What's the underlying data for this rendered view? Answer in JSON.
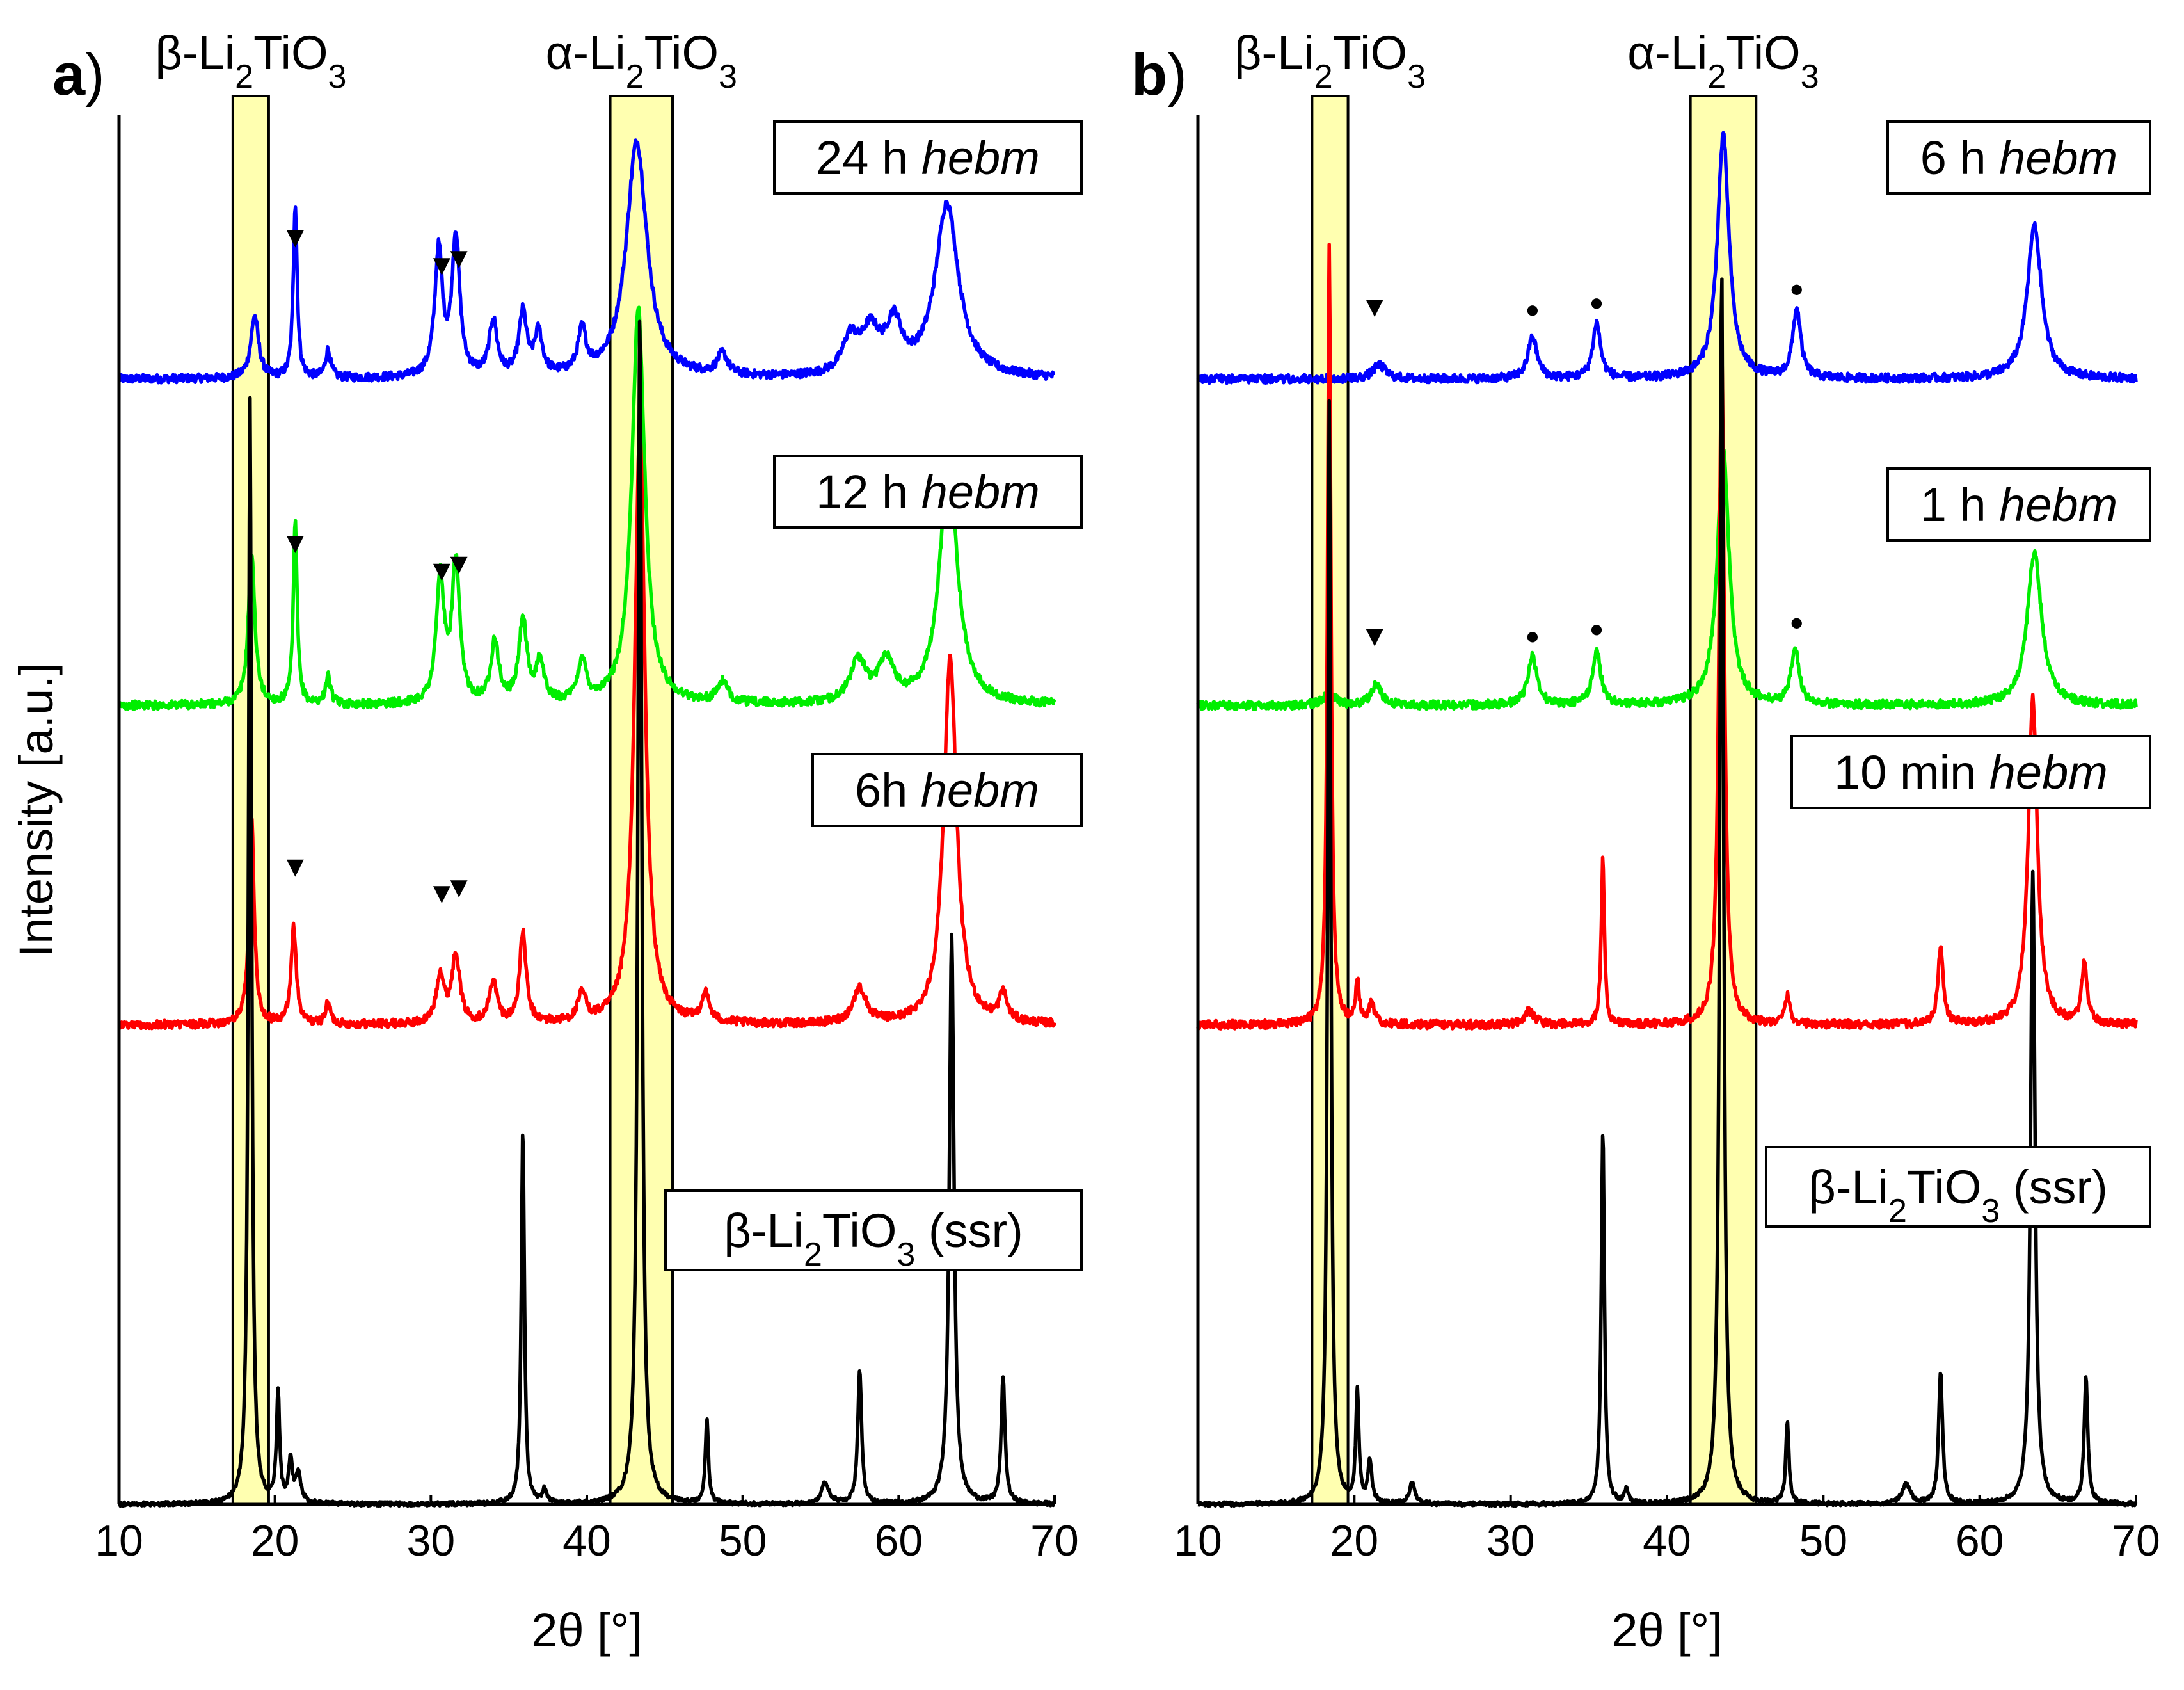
{
  "chart_data": [
    {
      "type": "line",
      "panel_letter": "a",
      "panel_paren": ")",
      "xlabel": "2θ [°]",
      "ylabel": "Intensity [a.u.]",
      "xlim": [
        10,
        70
      ],
      "xticks": [
        "10",
        "20",
        "30",
        "40",
        "50",
        "60",
        "70"
      ],
      "regions": [
        {
          "label_prefix": "β-Li",
          "sub1": "2",
          "label_mid": "TiO",
          "sub2": "3",
          "x_range": [
            17.3,
            19.6
          ]
        },
        {
          "label_prefix": "α-Li",
          "sub1": "2",
          "label_mid": "TiO",
          "sub2": "3",
          "x_range": [
            41.5,
            45.5
          ]
        }
      ],
      "series": [
        {
          "name": "24 h hebm",
          "legend_plain": "24 h ",
          "legend_italic": "hebm",
          "color": "#0000ff",
          "offset": 0.81,
          "baseline": 0.0,
          "peaks": [
            [
              18.7,
              0.045,
              0.3
            ],
            [
              21.3,
              0.125,
              0.15
            ],
            [
              23.4,
              0.02,
              0.2
            ],
            [
              30.5,
              0.09,
              0.3
            ],
            [
              31.6,
              0.1,
              0.3
            ],
            [
              34.0,
              0.04,
              0.3
            ],
            [
              35.9,
              0.045,
              0.3
            ],
            [
              36.9,
              0.03,
              0.3
            ],
            [
              39.7,
              0.03,
              0.3
            ],
            [
              43.2,
              0.17,
              0.8
            ],
            [
              48.7,
              0.015,
              0.4
            ],
            [
              56.9,
              0.025,
              0.6
            ],
            [
              58.2,
              0.03,
              0.7
            ],
            [
              59.7,
              0.035,
              0.6
            ],
            [
              63.1,
              0.125,
              0.9
            ]
          ],
          "markers": [
            {
              "symbol": "▼",
              "x": 21.3,
              "y": 0.905
            },
            {
              "symbol": "▼",
              "x": 30.7,
              "y": 0.885
            },
            {
              "symbol": "▼",
              "x": 31.8,
              "y": 0.89
            }
          ]
        },
        {
          "name": "12 h hebm",
          "legend_plain": "12 h ",
          "legend_italic": "hebm",
          "color": "#00ee00",
          "offset": 0.575,
          "baseline": 0.0,
          "peaks": [
            [
              18.5,
              0.11,
              0.25
            ],
            [
              21.3,
              0.13,
              0.15
            ],
            [
              23.4,
              0.02,
              0.2
            ],
            [
              30.6,
              0.09,
              0.3
            ],
            [
              31.6,
              0.1,
              0.3
            ],
            [
              34.1,
              0.045,
              0.3
            ],
            [
              35.9,
              0.06,
              0.3
            ],
            [
              37.0,
              0.03,
              0.3
            ],
            [
              39.7,
              0.03,
              0.3
            ],
            [
              43.3,
              0.285,
              0.5
            ],
            [
              48.7,
              0.015,
              0.4
            ],
            [
              57.4,
              0.03,
              0.6
            ],
            [
              59.2,
              0.03,
              0.6
            ],
            [
              63.2,
              0.17,
              0.7
            ]
          ],
          "markers": [
            {
              "symbol": "▼",
              "x": 21.3,
              "y": 0.685
            },
            {
              "symbol": "▼",
              "x": 30.7,
              "y": 0.665
            },
            {
              "symbol": "▼",
              "x": 31.8,
              "y": 0.67
            }
          ]
        },
        {
          "name": "6h hebm",
          "legend_plain": "6h ",
          "legend_italic": "hebm",
          "color": "#ff0000",
          "offset": 0.345,
          "baseline": 0.0,
          "peaks": [
            [
              18.5,
              0.15,
              0.2
            ],
            [
              21.2,
              0.07,
              0.2
            ],
            [
              23.4,
              0.015,
              0.2
            ],
            [
              30.6,
              0.035,
              0.3
            ],
            [
              31.6,
              0.05,
              0.3
            ],
            [
              34.0,
              0.03,
              0.3
            ],
            [
              35.9,
              0.065,
              0.25
            ],
            [
              39.7,
              0.02,
              0.3
            ],
            [
              43.4,
              0.43,
              0.4
            ],
            [
              47.6,
              0.02,
              0.3
            ],
            [
              57.5,
              0.025,
              0.5
            ],
            [
              63.3,
              0.265,
              0.5
            ],
            [
              66.7,
              0.02,
              0.3
            ]
          ],
          "markers": [
            {
              "symbol": "▼",
              "x": 21.3,
              "y": 0.452
            },
            {
              "symbol": "▼",
              "x": 30.7,
              "y": 0.433
            },
            {
              "symbol": "▼",
              "x": 31.8,
              "y": 0.437
            }
          ]
        },
        {
          "name": "β-Li2TiO3 (ssr)",
          "legend_plain": "β-Li",
          "legend_sub1": "2",
          "legend_mid": "TiO",
          "legend_sub2": "3",
          "legend_tail": " (ssr)",
          "color": "#000000",
          "offset": 0.0,
          "baseline": 0.0,
          "peaks": [
            [
              18.4,
              0.795,
              0.12
            ],
            [
              20.2,
              0.08,
              0.12
            ],
            [
              21.0,
              0.03,
              0.15
            ],
            [
              21.5,
              0.02,
              0.2
            ],
            [
              35.9,
              0.27,
              0.12
            ],
            [
              37.3,
              0.01,
              0.15
            ],
            [
              43.4,
              0.86,
              0.15
            ],
            [
              47.7,
              0.06,
              0.12
            ],
            [
              55.3,
              0.015,
              0.3
            ],
            [
              57.5,
              0.095,
              0.15
            ],
            [
              63.4,
              0.41,
              0.18
            ],
            [
              66.7,
              0.09,
              0.15
            ]
          ],
          "markers": []
        }
      ]
    },
    {
      "type": "line",
      "panel_letter": "b",
      "panel_paren": ")",
      "xlabel": "2θ [°]",
      "xlim": [
        10,
        70
      ],
      "xticks": [
        "10",
        "20",
        "30",
        "40",
        "50",
        "60",
        "70"
      ],
      "regions": [
        {
          "label_prefix": "β-Li",
          "sub1": "2",
          "label_mid": "TiO",
          "sub2": "3",
          "x_range": [
            17.3,
            19.6
          ]
        },
        {
          "label_prefix": "α-Li",
          "sub1": "2",
          "label_mid": "TiO",
          "sub2": "3",
          "x_range": [
            41.5,
            45.7
          ]
        }
      ],
      "series": [
        {
          "name": "6 h hebm",
          "legend_plain": "6 h ",
          "legend_italic": "hebm",
          "color": "#0000ff",
          "offset": 0.81,
          "baseline": 0.0,
          "peaks": [
            [
              21.6,
              0.01,
              0.5
            ],
            [
              31.4,
              0.03,
              0.35
            ],
            [
              35.5,
              0.04,
              0.3
            ],
            [
              43.6,
              0.175,
              0.45
            ],
            [
              48.3,
              0.05,
              0.3
            ],
            [
              63.5,
              0.11,
              0.55
            ]
          ],
          "markers": [
            {
              "symbol": "▼",
              "x": 21.3,
              "y": 0.855
            },
            {
              "symbol": "•",
              "x": 31.4,
              "y": 0.85
            },
            {
              "symbol": "•",
              "x": 35.5,
              "y": 0.855
            },
            {
              "symbol": "•",
              "x": 48.3,
              "y": 0.865
            }
          ]
        },
        {
          "name": "1 h hebm",
          "legend_plain": "1 h ",
          "legend_italic": "hebm",
          "color": "#00ee00",
          "offset": 0.575,
          "baseline": 0.0,
          "peaks": [
            [
              18.4,
              0.01,
              0.4
            ],
            [
              21.4,
              0.015,
              0.4
            ],
            [
              31.4,
              0.035,
              0.35
            ],
            [
              35.5,
              0.04,
              0.3
            ],
            [
              43.6,
              0.185,
              0.45
            ],
            [
              48.2,
              0.04,
              0.3
            ],
            [
              63.5,
              0.11,
              0.55
            ]
          ],
          "markers": [
            {
              "symbol": "▼",
              "x": 21.3,
              "y": 0.618
            },
            {
              "symbol": "•",
              "x": 31.4,
              "y": 0.615
            },
            {
              "symbol": "•",
              "x": 35.5,
              "y": 0.62
            },
            {
              "symbol": "•",
              "x": 48.3,
              "y": 0.625
            }
          ]
        },
        {
          "name": "10 min hebm",
          "legend_plain": "10 min ",
          "legend_italic": "hebm",
          "color": "#ff0000",
          "offset": 0.345,
          "baseline": 0.0,
          "peaks": [
            [
              18.4,
              0.56,
              0.13
            ],
            [
              20.2,
              0.03,
              0.15
            ],
            [
              21.1,
              0.015,
              0.2
            ],
            [
              31.2,
              0.01,
              0.4
            ],
            [
              35.9,
              0.12,
              0.12
            ],
            [
              43.5,
              0.49,
              0.2
            ],
            [
              47.7,
              0.02,
              0.2
            ],
            [
              57.5,
              0.055,
              0.2
            ],
            [
              63.4,
              0.235,
              0.35
            ],
            [
              66.7,
              0.045,
              0.2
            ]
          ],
          "markers": []
        },
        {
          "name": "β-Li2TiO3 (ssr)",
          "legend_plain": "β-Li",
          "legend_sub1": "2",
          "legend_mid": "TiO",
          "legend_sub2": "3",
          "legend_tail": " (ssr)",
          "color": "#000000",
          "offset": 0.0,
          "baseline": 0.0,
          "peaks": [
            [
              18.4,
              0.795,
              0.12
            ],
            [
              20.2,
              0.08,
              0.12
            ],
            [
              21.0,
              0.03,
              0.15
            ],
            [
              23.7,
              0.015,
              0.2
            ],
            [
              35.9,
              0.27,
              0.12
            ],
            [
              37.4,
              0.01,
              0.15
            ],
            [
              43.5,
              0.89,
              0.14
            ],
            [
              47.7,
              0.06,
              0.12
            ],
            [
              55.3,
              0.015,
              0.3
            ],
            [
              57.5,
              0.095,
              0.15
            ],
            [
              63.4,
              0.455,
              0.17
            ],
            [
              66.8,
              0.09,
              0.14
            ]
          ],
          "markers": []
        }
      ]
    }
  ]
}
